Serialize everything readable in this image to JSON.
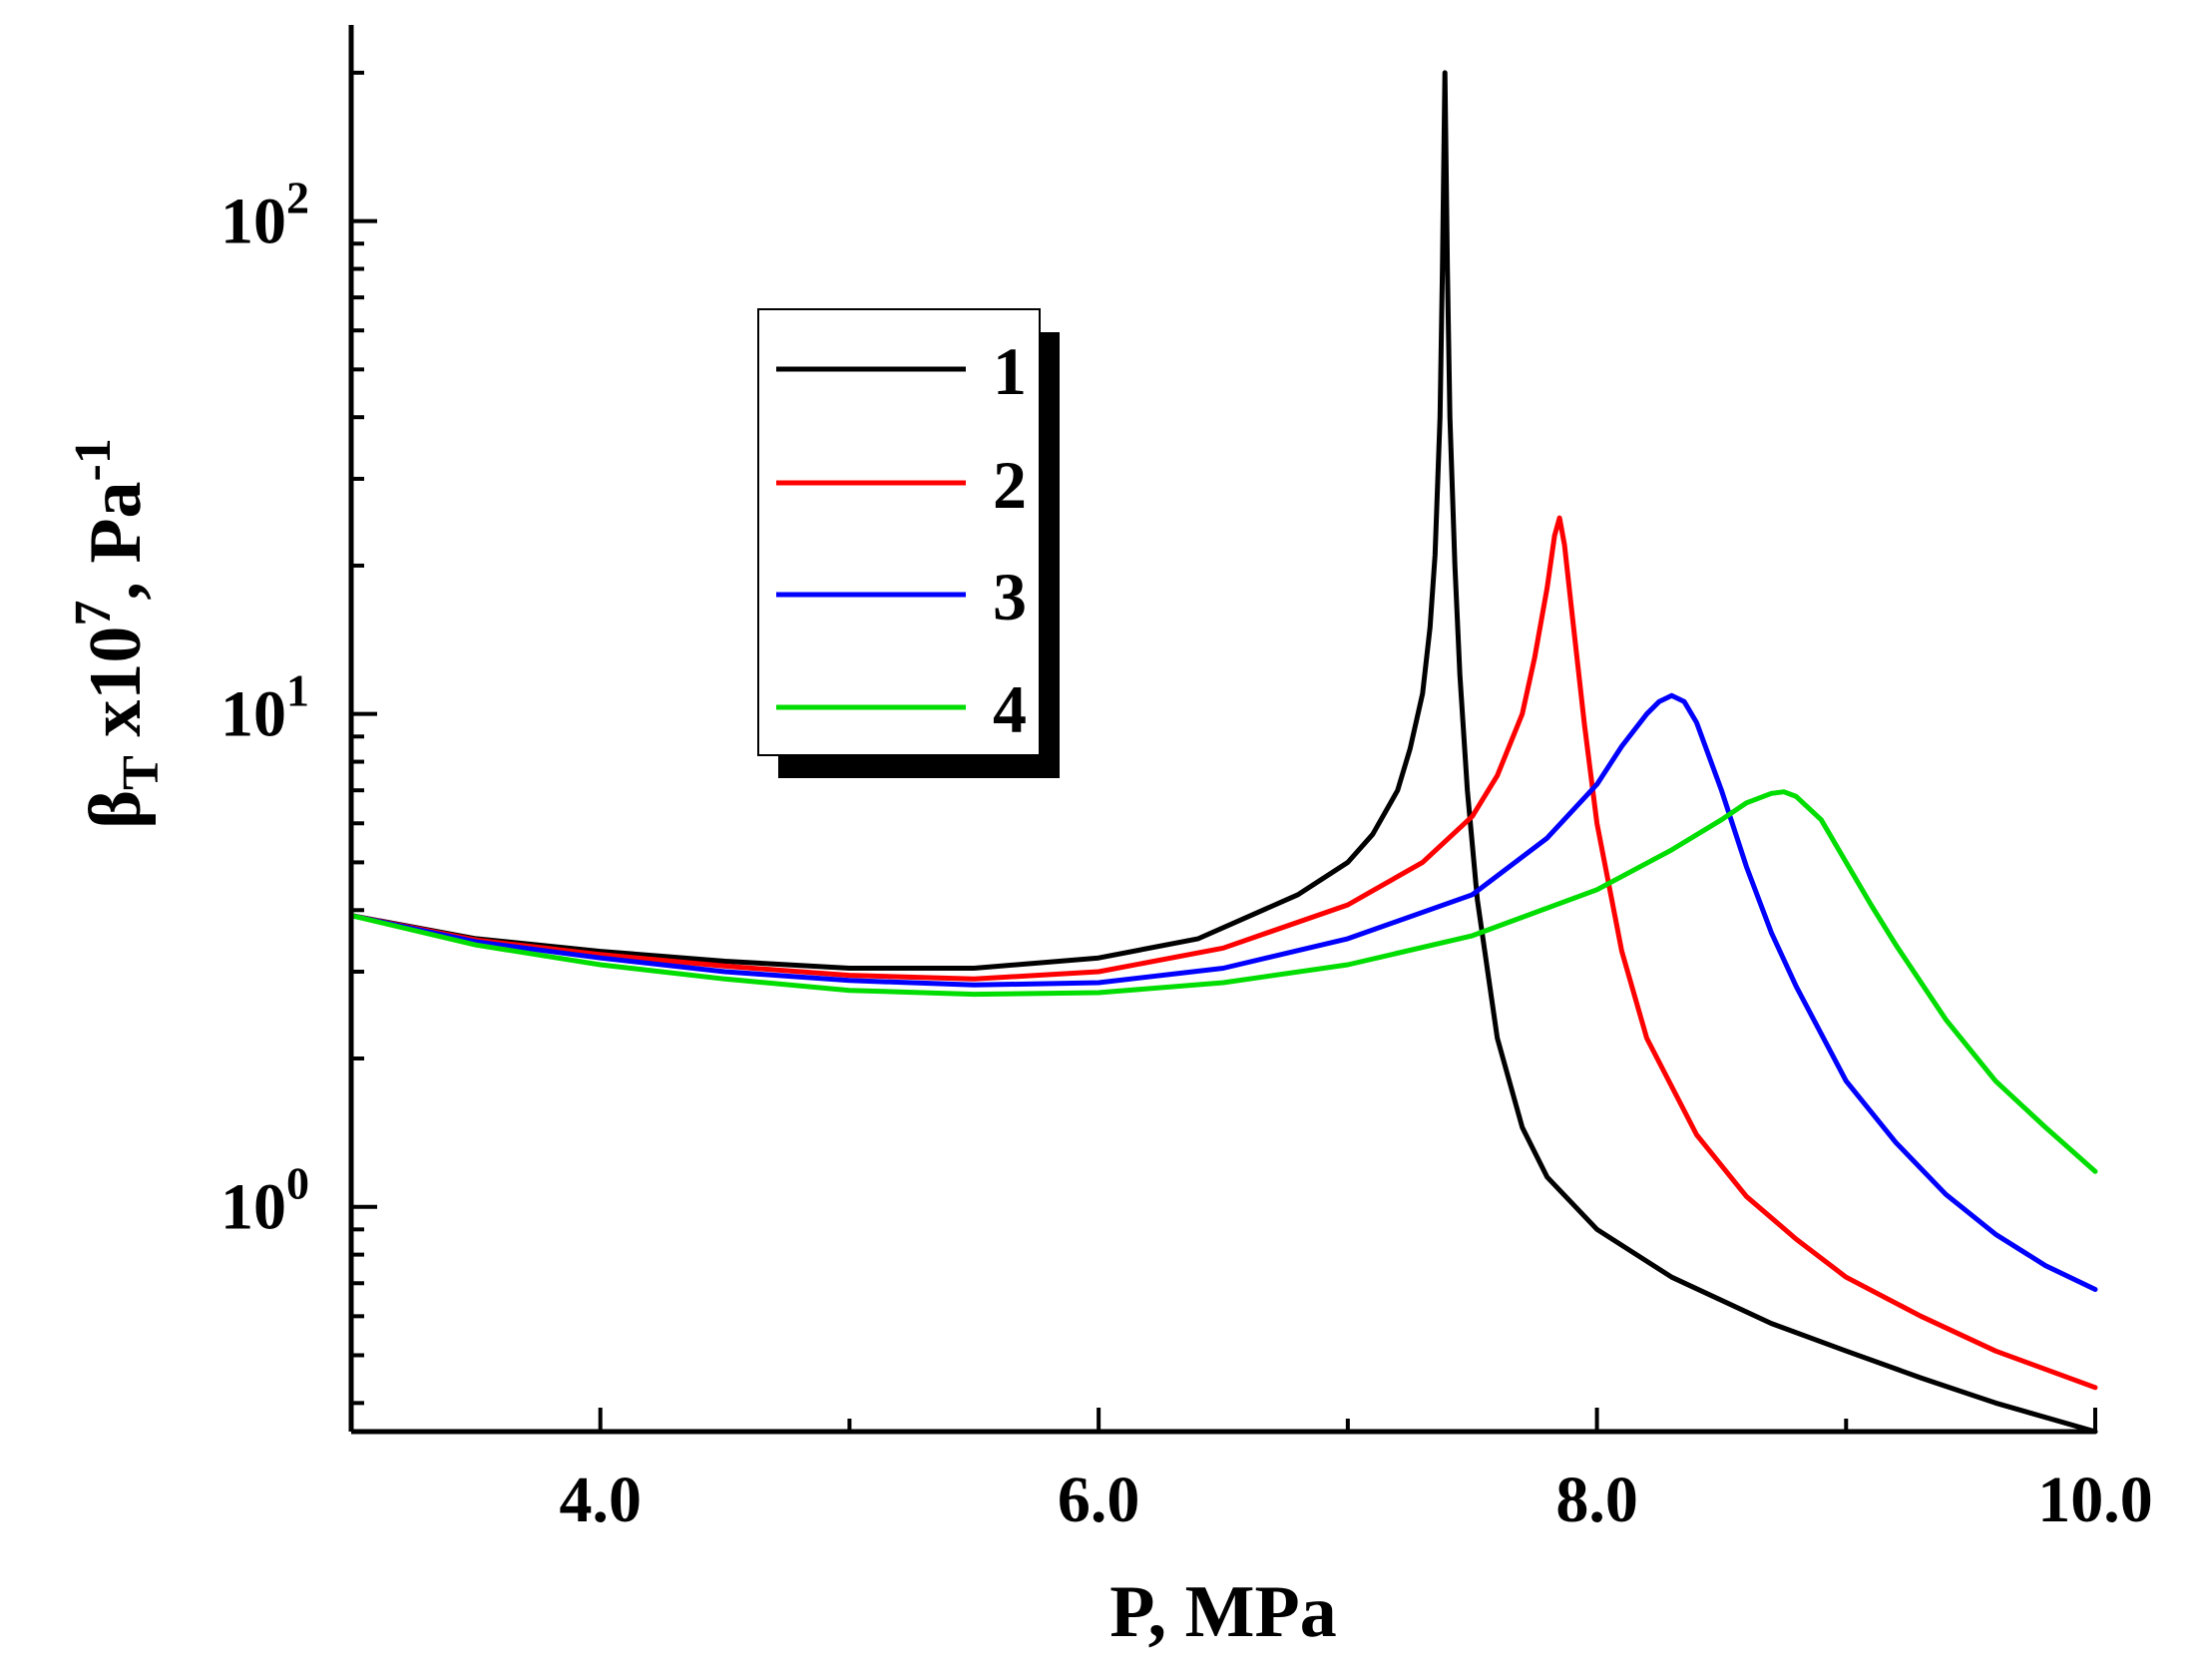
{
  "chart_data": {
    "type": "line",
    "title": "",
    "xlabel": "P, MPa",
    "ylabel": {
      "base": "β",
      "sub": "T",
      "mid": " x10",
      "sup": "7",
      "unit": ", Pa",
      "unit_sup": "-1"
    },
    "xlim": [
      3.0,
      10.0
    ],
    "ylim": [
      0.35,
      250
    ],
    "yscale": "log",
    "grid": false,
    "legend_position": "upper-left",
    "x_ticks": [
      {
        "value": 4.0,
        "label": "4.0"
      },
      {
        "value": 6.0,
        "label": "6.0"
      },
      {
        "value": 8.0,
        "label": "8.0"
      },
      {
        "value": 10.0,
        "label": "10.0"
      }
    ],
    "x_minor_ticks": [
      5.0,
      7.0,
      9.0
    ],
    "y_ticks": [
      {
        "value": 1,
        "base": "10",
        "exp": "0"
      },
      {
        "value": 10,
        "base": "10",
        "exp": "1"
      },
      {
        "value": 100,
        "base": "10",
        "exp": "2"
      }
    ],
    "series": [
      {
        "name": "1",
        "color": "#000000",
        "x": [
          3.0,
          3.5,
          4.0,
          4.5,
          5.0,
          5.5,
          6.0,
          6.4,
          6.8,
          7.0,
          7.1,
          7.2,
          7.25,
          7.3,
          7.33,
          7.35,
          7.37,
          7.38,
          7.39,
          7.4,
          7.41,
          7.43,
          7.45,
          7.48,
          7.52,
          7.6,
          7.7,
          7.8,
          8.0,
          8.3,
          8.7,
          9.0,
          9.3,
          9.6,
          10.0
        ],
        "y": [
          3.9,
          3.5,
          3.3,
          3.15,
          3.05,
          3.05,
          3.2,
          3.5,
          4.3,
          5.0,
          5.7,
          7.0,
          8.5,
          11.0,
          15.0,
          21.0,
          40.0,
          80.0,
          200.0,
          80.0,
          40.0,
          20.0,
          12.0,
          7.0,
          4.2,
          2.2,
          1.45,
          1.15,
          0.9,
          0.72,
          0.58,
          0.51,
          0.45,
          0.4,
          0.35
        ]
      },
      {
        "name": "2",
        "color": "#ff0000",
        "x": [
          3.0,
          3.5,
          4.0,
          4.5,
          5.0,
          5.5,
          6.0,
          6.5,
          7.0,
          7.3,
          7.5,
          7.6,
          7.7,
          7.75,
          7.8,
          7.83,
          7.85,
          7.87,
          7.9,
          7.95,
          8.0,
          8.1,
          8.2,
          8.4,
          8.6,
          8.8,
          9.0,
          9.3,
          9.6,
          10.0
        ],
        "y": [
          3.9,
          3.48,
          3.25,
          3.08,
          2.95,
          2.9,
          3.0,
          3.35,
          4.1,
          5.0,
          6.2,
          7.5,
          10.0,
          13.0,
          18.0,
          23.0,
          25.0,
          22.0,
          16.0,
          9.5,
          6.0,
          3.3,
          2.2,
          1.4,
          1.05,
          0.86,
          0.72,
          0.6,
          0.51,
          0.43
        ]
      },
      {
        "name": "3",
        "color": "#0000ff",
        "x": [
          3.0,
          3.5,
          4.0,
          4.5,
          5.0,
          5.5,
          6.0,
          6.5,
          7.0,
          7.5,
          7.8,
          8.0,
          8.1,
          8.2,
          8.25,
          8.3,
          8.35,
          8.4,
          8.5,
          8.6,
          8.7,
          8.8,
          9.0,
          9.2,
          9.4,
          9.6,
          9.8,
          10.0
        ],
        "y": [
          3.9,
          3.45,
          3.2,
          3.0,
          2.88,
          2.82,
          2.85,
          3.05,
          3.5,
          4.3,
          5.6,
          7.2,
          8.6,
          10.0,
          10.6,
          10.9,
          10.6,
          9.6,
          7.0,
          4.9,
          3.6,
          2.8,
          1.8,
          1.35,
          1.06,
          0.88,
          0.76,
          0.68
        ]
      },
      {
        "name": "4",
        "color": "#00dd00",
        "x": [
          3.0,
          3.5,
          4.0,
          4.5,
          5.0,
          5.5,
          6.0,
          6.5,
          7.0,
          7.5,
          8.0,
          8.3,
          8.5,
          8.6,
          8.7,
          8.75,
          8.8,
          8.9,
          9.0,
          9.1,
          9.2,
          9.4,
          9.6,
          9.8,
          10.0
        ],
        "y": [
          3.9,
          3.4,
          3.1,
          2.9,
          2.75,
          2.7,
          2.72,
          2.85,
          3.1,
          3.55,
          4.4,
          5.3,
          6.1,
          6.6,
          6.9,
          6.95,
          6.8,
          6.1,
          5.0,
          4.1,
          3.4,
          2.4,
          1.8,
          1.45,
          1.18
        ]
      }
    ]
  }
}
